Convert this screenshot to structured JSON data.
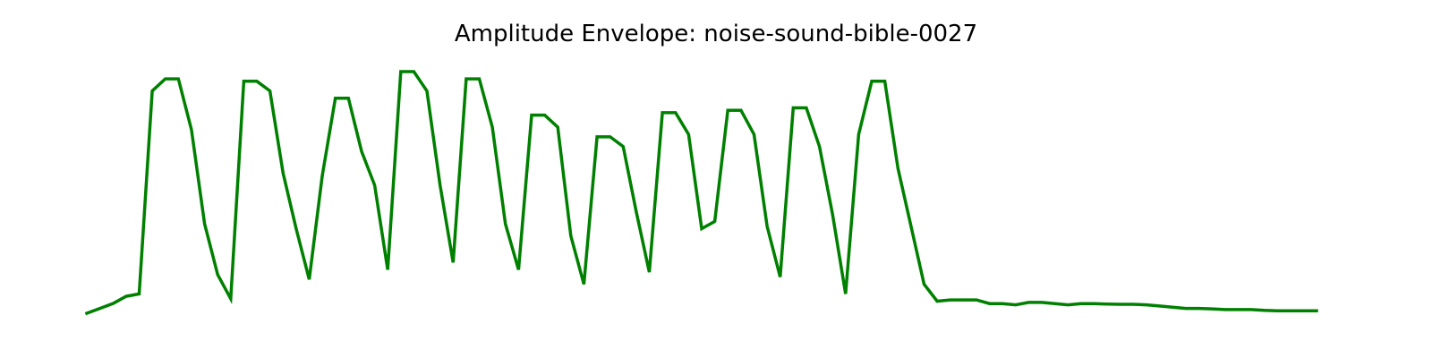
{
  "chart_data": {
    "type": "line",
    "title": "Amplitude Envelope: noise-sound-bible-0027",
    "xlabel": "",
    "ylabel": "",
    "axes_visible": false,
    "grid": false,
    "legend": "none",
    "series": [
      {
        "color": "#008000",
        "values": [
          0.0,
          0.02,
          0.04,
          0.07,
          0.08,
          0.92,
          0.97,
          0.97,
          0.76,
          0.37,
          0.16,
          0.06,
          0.96,
          0.96,
          0.92,
          0.58,
          0.35,
          0.14,
          0.57,
          0.89,
          0.89,
          0.67,
          0.53,
          0.18,
          1.0,
          1.0,
          0.92,
          0.53,
          0.21,
          0.97,
          0.97,
          0.77,
          0.37,
          0.18,
          0.82,
          0.82,
          0.77,
          0.32,
          0.12,
          0.73,
          0.73,
          0.69,
          0.42,
          0.17,
          0.83,
          0.83,
          0.74,
          0.35,
          0.38,
          0.84,
          0.84,
          0.74,
          0.36,
          0.15,
          0.85,
          0.85,
          0.69,
          0.41,
          0.08,
          0.74,
          0.96,
          0.96,
          0.6,
          0.36,
          0.12,
          0.05,
          0.055,
          0.055,
          0.055,
          0.04,
          0.04,
          0.035,
          0.045,
          0.045,
          0.04,
          0.035,
          0.04,
          0.04,
          0.038,
          0.037,
          0.037,
          0.035,
          0.03,
          0.025,
          0.02,
          0.02,
          0.018,
          0.015,
          0.015,
          0.015,
          0.012,
          0.01,
          0.01,
          0.01,
          0.01
        ]
      }
    ]
  }
}
